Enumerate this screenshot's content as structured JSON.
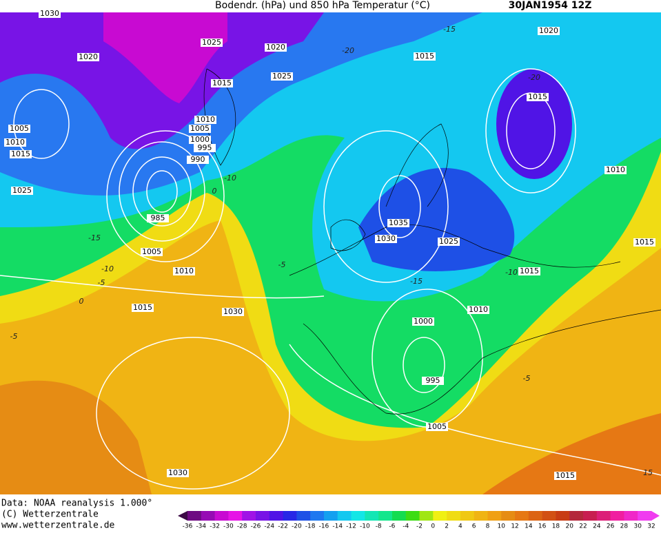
{
  "header": {
    "title": "Bodendr. (hPa) und 850 hPa Temperatur (°C)",
    "date": "30JAN1954 12Z"
  },
  "footer": [
    "Data: NOAA reanalysis 1.000°",
    "(C) Wetterzentrale",
    "www.wetterzentrale.de"
  ],
  "isobar_labels": [
    "1030",
    "1020",
    "1025",
    "1020",
    "1015",
    "1020",
    "1015",
    "1025",
    "1015",
    "1005",
    "1010",
    "1015",
    "1010",
    "1005",
    "1000",
    "995",
    "990",
    "1010",
    "1025",
    "985",
    "1035",
    "1030",
    "1025",
    "1015",
    "1005",
    "1010",
    "1015",
    "1015",
    "1030",
    "1010",
    "1000",
    "995",
    "1005",
    "1030",
    "1015"
  ],
  "temperature_labels": [
    "-10",
    "0",
    "-15",
    "-10",
    "-5",
    "0",
    "-5",
    "-5",
    "-15",
    "-10",
    "-5",
    "15",
    "-20",
    "-15",
    "-20"
  ],
  "colorbar": {
    "ticks": [
      -36,
      -34,
      -32,
      -30,
      -28,
      -26,
      -24,
      -22,
      -20,
      -18,
      -16,
      -14,
      -12,
      -10,
      -8,
      -6,
      -4,
      -2,
      0,
      2,
      4,
      6,
      8,
      10,
      12,
      14,
      16,
      18,
      20,
      22,
      24,
      26,
      28,
      30,
      32
    ],
    "colors": [
      "#3c0a46",
      "#6e0a82",
      "#960ab4",
      "#c80ad2",
      "#e614e6",
      "#a014e6",
      "#7814e6",
      "#5014e6",
      "#2828e6",
      "#1e50e6",
      "#1e78f0",
      "#14a0f0",
      "#14c8f0",
      "#14e6e6",
      "#14e6b4",
      "#14e68c",
      "#14dc50",
      "#3cdc14",
      "#a0e614",
      "#f0f014",
      "#f0dc14",
      "#f0c814",
      "#f0b414",
      "#f0a014",
      "#e68c14",
      "#e67814",
      "#dc6414",
      "#d25014",
      "#c83c14",
      "#b4283c",
      "#c81e50",
      "#dc1e78",
      "#f01ea0",
      "#f028c8",
      "#f03cf0"
    ]
  }
}
